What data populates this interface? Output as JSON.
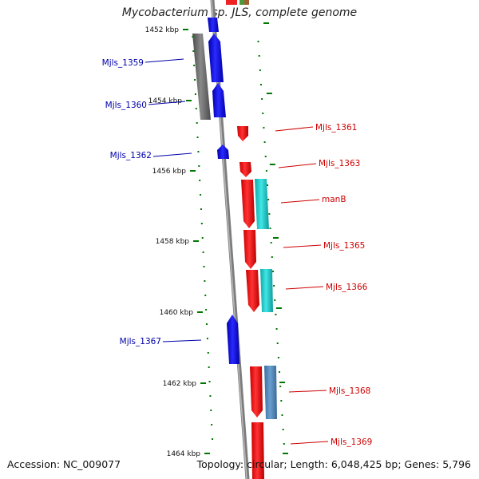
{
  "title": "Mycobacterium sp. JLS, complete genome",
  "footer": {
    "accession": "Accession: NC_009077",
    "topology": "Topology: circular; Length: 6,048,425 bp; Genes: 5,796"
  },
  "colors": {
    "forward": "#0000dd",
    "reverse": "#ee0000",
    "cyan": "#22cccc",
    "steelblue": "#4f86b8",
    "gray": "#666666",
    "backbone": "#8a8a8a",
    "tick": "#007700",
    "label_forward": "#0000aa",
    "label_reverse": "#cc0000"
  },
  "kbp_labels": [
    "1452 kbp",
    "1454 kbp",
    "1456 kbp",
    "1458 kbp",
    "1460 kbp",
    "1462 kbp",
    "1464 kbp"
  ],
  "gene_labels": [
    "Mjls_1359",
    "Mjls_1360",
    "Mjls_1361",
    "Mjls_1362",
    "Mjls_1363",
    "manB",
    "Mjls_1365",
    "Mjls_1366",
    "Mjls_1367",
    "Mjls_1368",
    "Mjls_1369"
  ]
}
